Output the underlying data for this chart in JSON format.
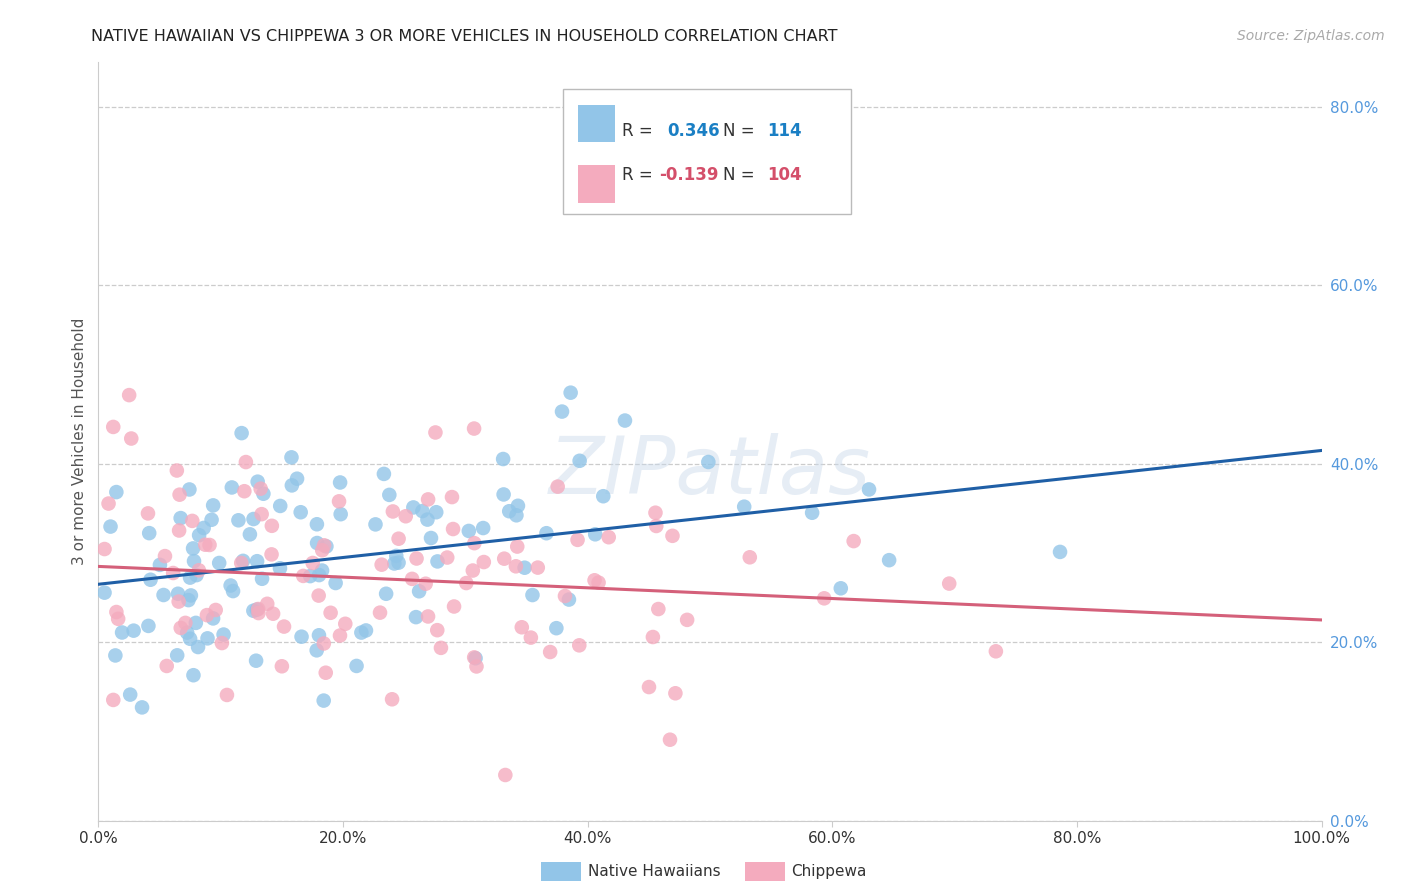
{
  "title": "NATIVE HAWAIIAN VS CHIPPEWA 3 OR MORE VEHICLES IN HOUSEHOLD CORRELATION CHART",
  "source": "Source: ZipAtlas.com",
  "ylabel": "3 or more Vehicles in Household",
  "xlim": [
    0.0,
    1.0
  ],
  "ylim": [
    0.0,
    0.85
  ],
  "xticks": [
    0.0,
    0.2,
    0.4,
    0.6,
    0.8,
    1.0
  ],
  "xticklabels": [
    "0.0%",
    "20.0%",
    "40.0%",
    "60.0%",
    "80.0%",
    "100.0%"
  ],
  "yticks_right": [
    0.0,
    0.2,
    0.4,
    0.6,
    0.8
  ],
  "yticklabels_right": [
    "0.0%",
    "20.0%",
    "40.0%",
    "60.0%",
    "80.0%"
  ],
  "blue_color": "#92C5E8",
  "pink_color": "#F4ABBE",
  "blue_line_color": "#1F5FA6",
  "pink_line_color": "#D4607A",
  "r_blue": 0.346,
  "n_blue": 114,
  "r_pink": -0.139,
  "n_pink": 104,
  "legend_r_color": "#1a7fc4",
  "legend_n_color": "#1a7fc4",
  "legend_r_pink_color": "#d44f6a",
  "watermark": "ZIPatlas",
  "blue_line_x0": 0.0,
  "blue_line_y0": 0.265,
  "blue_line_x1": 1.0,
  "blue_line_y1": 0.415,
  "pink_line_x0": 0.0,
  "pink_line_y0": 0.285,
  "pink_line_x1": 1.0,
  "pink_line_y1": 0.225,
  "grid_color": "#cccccc",
  "right_tick_color": "#5599dd",
  "spine_color": "#cccccc"
}
